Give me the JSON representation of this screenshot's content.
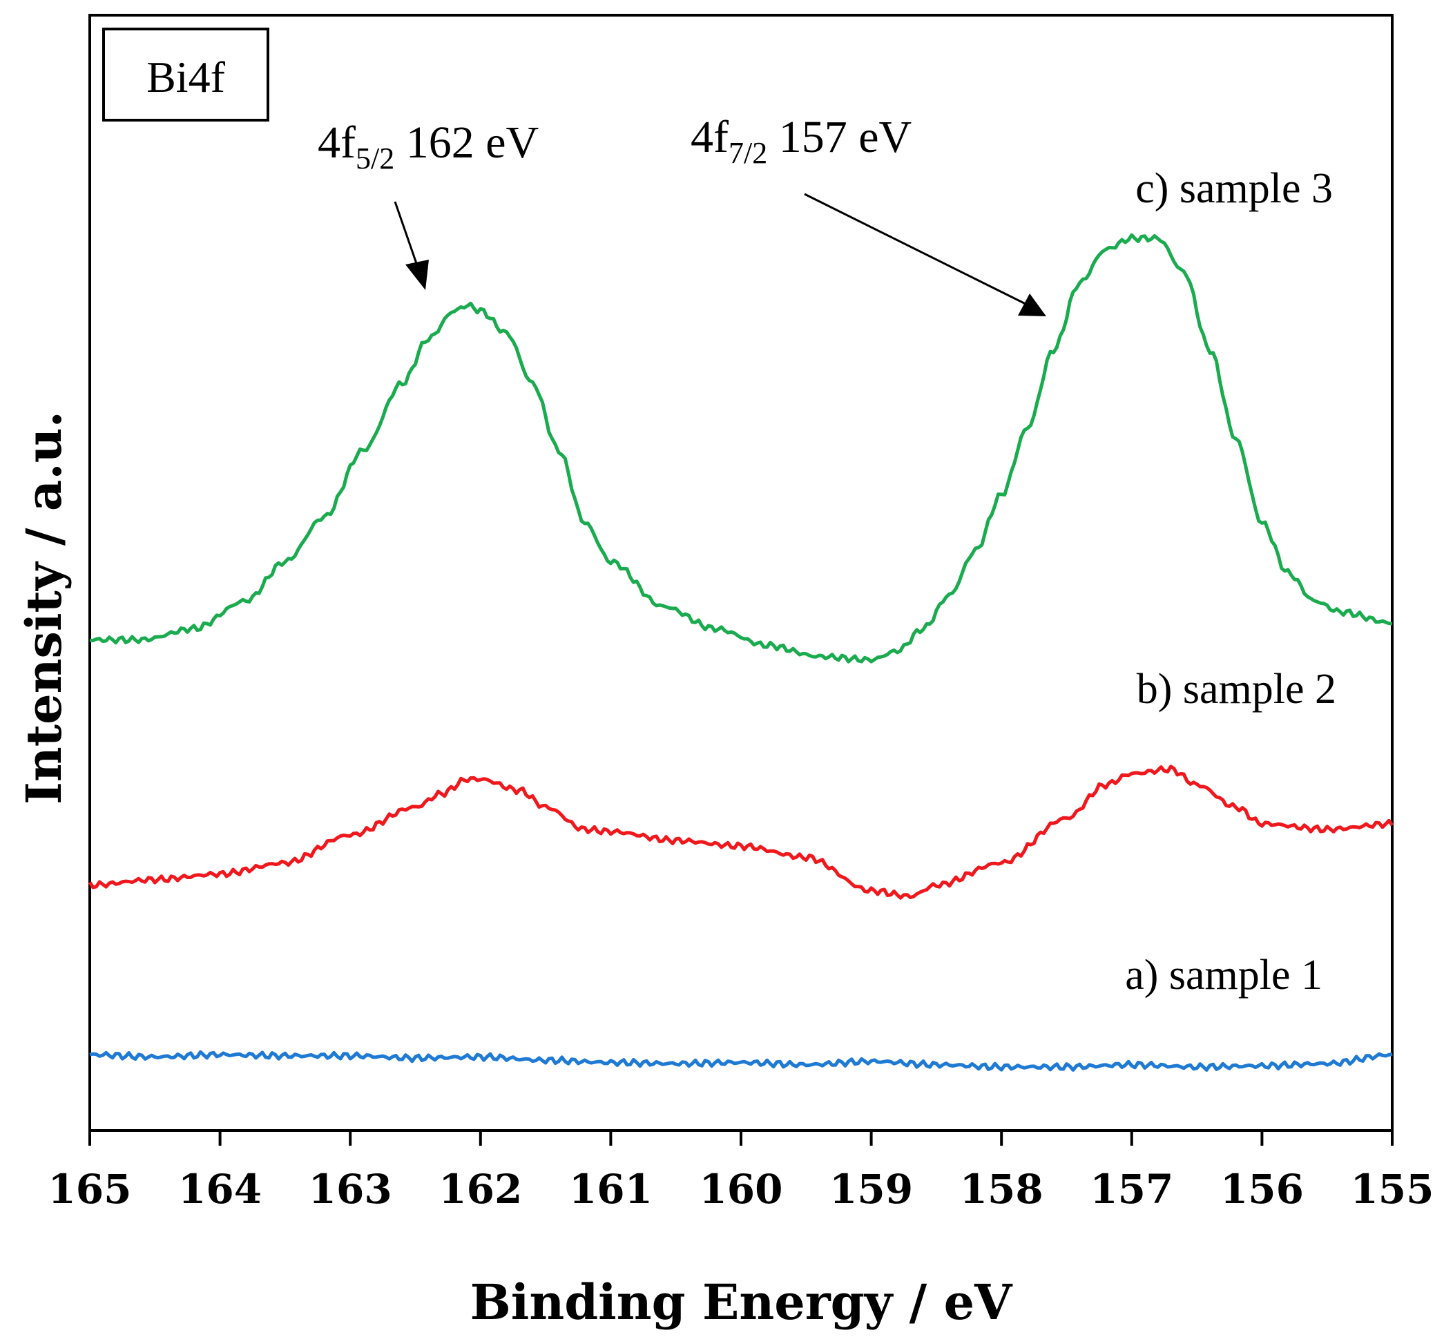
{
  "chart_data": {
    "type": "line",
    "title": "",
    "panel_label": "Bi4f",
    "xlabel": "Binding Energy / eV",
    "ylabel": "Intensity / a.u.",
    "xlim": [
      165,
      155
    ],
    "x_reversed": true,
    "ylim": [
      0,
      100
    ],
    "y_ticks_shown": false,
    "grid": false,
    "xticks": [
      "165",
      "164",
      "163",
      "162",
      "161",
      "160",
      "159",
      "158",
      "157",
      "156",
      "155"
    ],
    "colors": {
      "sample1": "#1f7ad4",
      "sample2": "#f0181d",
      "sample3": "#1aab4f",
      "axis": "#000000"
    },
    "series": [
      {
        "name": "a) sample 1",
        "color": "#1f7ad4",
        "x": [
          165,
          164.5,
          164,
          163.5,
          163,
          162.5,
          162,
          161.5,
          161,
          160.5,
          160,
          159.5,
          159,
          158.5,
          158,
          157.5,
          157,
          156.5,
          156,
          155.5,
          155
        ],
        "y": [
          6.8,
          6.6,
          6.8,
          6.7,
          6.7,
          6.5,
          6.6,
          6.3,
          6.1,
          6.0,
          6.1,
          5.9,
          6.2,
          5.9,
          5.7,
          5.7,
          5.9,
          5.7,
          5.8,
          6.0,
          6.8
        ]
      },
      {
        "name": "b) sample 2",
        "color": "#f0181d",
        "x": [
          165,
          164.5,
          164,
          163.5,
          163,
          162.5,
          162.3,
          162.1,
          162,
          161.7,
          161.5,
          161.2,
          161,
          160.5,
          160,
          159.5,
          159,
          158.7,
          158.5,
          158,
          157.5,
          157.2,
          157,
          156.7,
          156.5,
          156.2,
          156,
          155.5,
          155
        ],
        "y": [
          22.0,
          22.5,
          23.0,
          24.0,
          26.5,
          29.0,
          30.2,
          31.5,
          31.5,
          30.5,
          29.0,
          27.0,
          26.8,
          26.0,
          25.5,
          24.5,
          21.5,
          21.0,
          22.0,
          24.0,
          28.0,
          31.0,
          32.0,
          32.4,
          31.0,
          29.0,
          27.5,
          27.0,
          27.5
        ]
      },
      {
        "name": "c) sample 3",
        "color": "#1aab4f",
        "x": [
          165,
          164.6,
          164.2,
          163.8,
          163.5,
          163.2,
          162.9,
          162.6,
          162.4,
          162.2,
          162.1,
          162,
          161.8,
          161.6,
          161.4,
          161.2,
          161,
          160.6,
          160.2,
          159.8,
          159.4,
          159,
          158.8,
          158.6,
          158.4,
          158.2,
          158,
          157.8,
          157.6,
          157.4,
          157.2,
          157,
          156.8,
          156.6,
          156.4,
          156.2,
          156,
          155.8,
          155.6,
          155.4,
          155
        ],
        "y": [
          44.0,
          44.0,
          45.0,
          47.5,
          51.0,
          55.0,
          61.0,
          67.0,
          71.0,
          73.5,
          74.0,
          73.5,
          71.5,
          67.0,
          61.0,
          54.5,
          51.0,
          47.0,
          45.0,
          43.5,
          42.5,
          42.2,
          43.0,
          45.0,
          48.0,
          52.0,
          57.0,
          63.0,
          70.0,
          76.0,
          79.0,
          80.0,
          80.0,
          77.0,
          70.0,
          62.0,
          54.5,
          50.0,
          47.5,
          46.5,
          45.5
        ]
      }
    ],
    "annotations": [
      {
        "main": "4f",
        "sub": "5/2",
        "rest": " 162 eV",
        "points_to_x": 162.3
      },
      {
        "main": "4f",
        "sub": "7/2",
        "rest": " 157 eV",
        "points_to_x": 157.2
      }
    ]
  }
}
